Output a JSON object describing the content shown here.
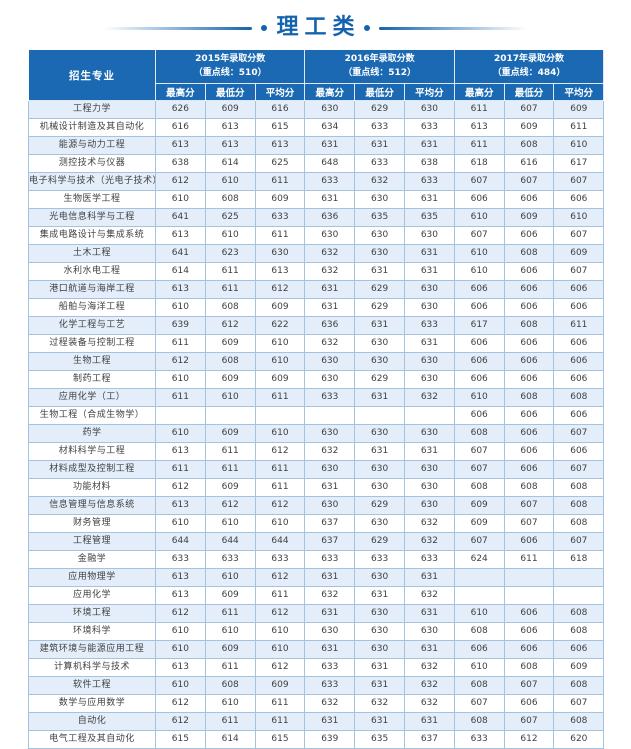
{
  "title": "理工类",
  "colors": {
    "accent": "#1563ae",
    "header_bg": "#1b69b2",
    "row_stripe": "#e3eefa",
    "grid_line": "#a6c3de"
  },
  "table": {
    "major_header": "招生专业",
    "year_groups": [
      {
        "line1": "2015年录取分数",
        "line2": "（重点线：510）"
      },
      {
        "line1": "2016年录取分数",
        "line2": "（重点线：512）"
      },
      {
        "line1": "2017年录取分数",
        "line2": "（重点线：484）"
      }
    ],
    "sub_headers": [
      "最高分",
      "最低分",
      "平均分"
    ],
    "rows": [
      {
        "major": "工程力学",
        "scores": [
          "626",
          "609",
          "616",
          "630",
          "629",
          "630",
          "611",
          "607",
          "609"
        ]
      },
      {
        "major": "机械设计制造及其自动化",
        "scores": [
          "616",
          "613",
          "615",
          "634",
          "633",
          "633",
          "613",
          "609",
          "611"
        ]
      },
      {
        "major": "能源与动力工程",
        "scores": [
          "613",
          "613",
          "613",
          "631",
          "631",
          "631",
          "611",
          "608",
          "610"
        ]
      },
      {
        "major": "测控技术与仪器",
        "scores": [
          "638",
          "614",
          "625",
          "648",
          "633",
          "638",
          "618",
          "616",
          "617"
        ]
      },
      {
        "major": "电子科学与技术（光电子技术）",
        "scores": [
          "612",
          "610",
          "611",
          "633",
          "632",
          "633",
          "607",
          "607",
          "607"
        ]
      },
      {
        "major": "生物医学工程",
        "scores": [
          "610",
          "608",
          "609",
          "631",
          "630",
          "631",
          "606",
          "606",
          "606"
        ]
      },
      {
        "major": "光电信息科学与工程",
        "scores": [
          "641",
          "625",
          "633",
          "636",
          "635",
          "635",
          "610",
          "609",
          "610"
        ]
      },
      {
        "major": "集成电路设计与集成系统",
        "scores": [
          "613",
          "610",
          "611",
          "630",
          "630",
          "630",
          "607",
          "606",
          "607"
        ]
      },
      {
        "major": "土木工程",
        "scores": [
          "641",
          "623",
          "630",
          "632",
          "630",
          "631",
          "610",
          "608",
          "609"
        ]
      },
      {
        "major": "水利水电工程",
        "scores": [
          "614",
          "611",
          "613",
          "632",
          "631",
          "631",
          "610",
          "606",
          "607"
        ]
      },
      {
        "major": "港口航道与海岸工程",
        "scores": [
          "613",
          "611",
          "612",
          "631",
          "629",
          "630",
          "606",
          "606",
          "606"
        ]
      },
      {
        "major": "船舶与海洋工程",
        "scores": [
          "610",
          "608",
          "609",
          "631",
          "629",
          "630",
          "606",
          "606",
          "606"
        ]
      },
      {
        "major": "化学工程与工艺",
        "scores": [
          "639",
          "612",
          "622",
          "636",
          "631",
          "633",
          "617",
          "608",
          "611"
        ]
      },
      {
        "major": "过程装备与控制工程",
        "scores": [
          "611",
          "609",
          "610",
          "632",
          "630",
          "631",
          "606",
          "606",
          "606"
        ]
      },
      {
        "major": "生物工程",
        "scores": [
          "612",
          "608",
          "610",
          "630",
          "630",
          "630",
          "606",
          "606",
          "606"
        ]
      },
      {
        "major": "制药工程",
        "scores": [
          "610",
          "609",
          "609",
          "630",
          "629",
          "630",
          "606",
          "606",
          "606"
        ]
      },
      {
        "major": "应用化学（工）",
        "scores": [
          "611",
          "610",
          "611",
          "633",
          "631",
          "632",
          "610",
          "608",
          "608"
        ]
      },
      {
        "major": "生物工程（合成生物学）",
        "scores": [
          "",
          "",
          "",
          "",
          "",
          "",
          "606",
          "606",
          "606"
        ]
      },
      {
        "major": "药学",
        "scores": [
          "610",
          "609",
          "610",
          "630",
          "630",
          "630",
          "608",
          "606",
          "607"
        ]
      },
      {
        "major": "材料科学与工程",
        "scores": [
          "613",
          "611",
          "612",
          "632",
          "631",
          "631",
          "607",
          "606",
          "606"
        ]
      },
      {
        "major": "材料成型及控制工程",
        "scores": [
          "611",
          "611",
          "611",
          "630",
          "630",
          "630",
          "607",
          "606",
          "607"
        ]
      },
      {
        "major": "功能材料",
        "scores": [
          "612",
          "609",
          "611",
          "631",
          "630",
          "630",
          "608",
          "608",
          "608"
        ]
      },
      {
        "major": "信息管理与信息系统",
        "scores": [
          "613",
          "612",
          "612",
          "630",
          "629",
          "630",
          "609",
          "607",
          "608"
        ]
      },
      {
        "major": "财务管理",
        "scores": [
          "610",
          "610",
          "610",
          "637",
          "630",
          "632",
          "609",
          "607",
          "608"
        ]
      },
      {
        "major": "工程管理",
        "scores": [
          "644",
          "644",
          "644",
          "637",
          "629",
          "632",
          "607",
          "606",
          "607"
        ]
      },
      {
        "major": "金融学",
        "scores": [
          "633",
          "633",
          "633",
          "633",
          "633",
          "633",
          "624",
          "611",
          "618"
        ]
      },
      {
        "major": "应用物理学",
        "scores": [
          "613",
          "610",
          "612",
          "631",
          "630",
          "631",
          "",
          "",
          ""
        ]
      },
      {
        "major": "应用化学",
        "scores": [
          "613",
          "609",
          "611",
          "632",
          "631",
          "632",
          "",
          "",
          ""
        ]
      },
      {
        "major": "环境工程",
        "scores": [
          "612",
          "611",
          "612",
          "631",
          "630",
          "631",
          "610",
          "606",
          "608"
        ]
      },
      {
        "major": "环境科学",
        "scores": [
          "610",
          "610",
          "610",
          "630",
          "630",
          "630",
          "608",
          "606",
          "608"
        ]
      },
      {
        "major": "建筑环境与能源应用工程",
        "scores": [
          "610",
          "609",
          "610",
          "631",
          "630",
          "631",
          "606",
          "606",
          "606"
        ]
      },
      {
        "major": "计算机科学与技术",
        "scores": [
          "613",
          "611",
          "612",
          "633",
          "631",
          "632",
          "610",
          "608",
          "609"
        ]
      },
      {
        "major": "软件工程",
        "scores": [
          "610",
          "608",
          "609",
          "633",
          "631",
          "632",
          "608",
          "607",
          "608"
        ]
      },
      {
        "major": "数学与应用数学",
        "scores": [
          "612",
          "610",
          "611",
          "632",
          "632",
          "632",
          "607",
          "606",
          "607"
        ]
      },
      {
        "major": "自动化",
        "scores": [
          "612",
          "611",
          "611",
          "631",
          "631",
          "631",
          "608",
          "607",
          "608"
        ]
      },
      {
        "major": "电气工程及其自动化",
        "scores": [
          "615",
          "614",
          "615",
          "639",
          "635",
          "637",
          "633",
          "612",
          "620"
        ]
      }
    ]
  }
}
